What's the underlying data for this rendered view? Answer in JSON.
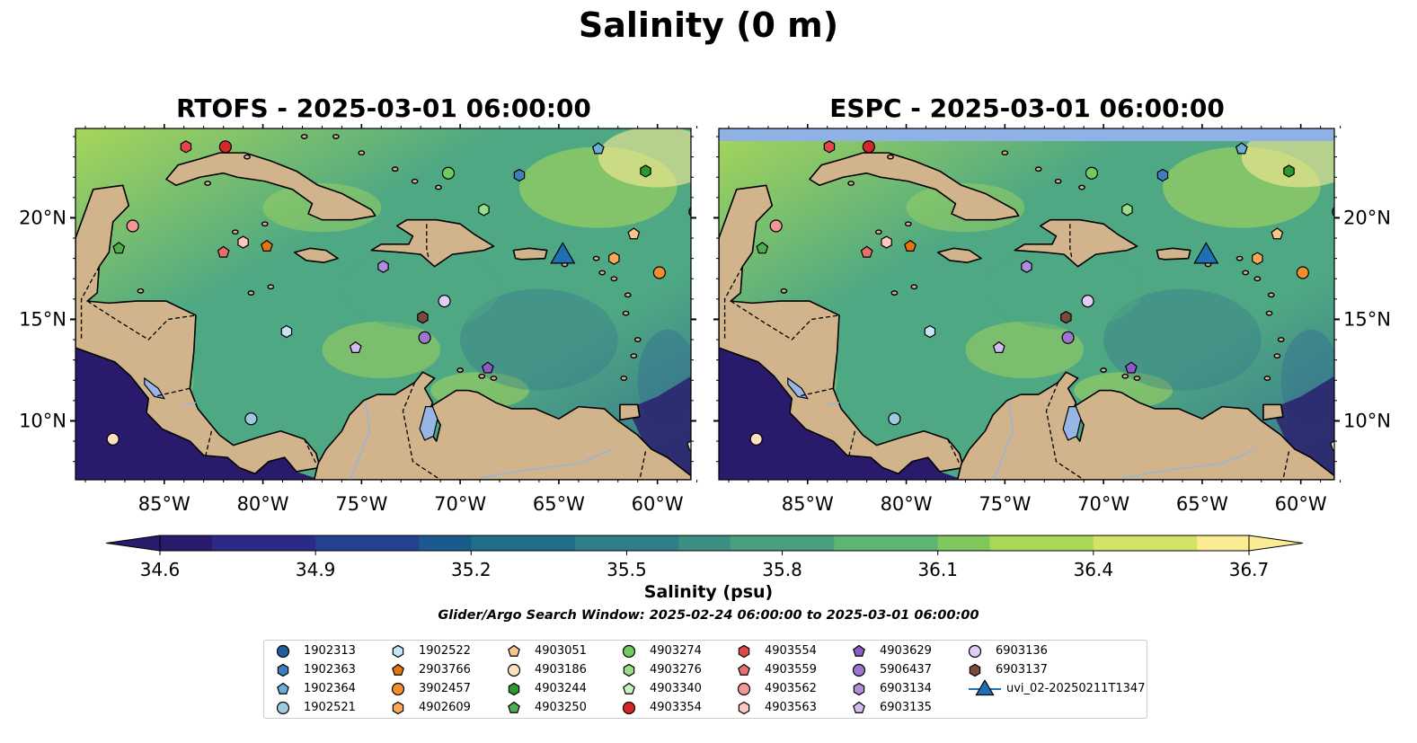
{
  "title": "Salinity (0 m)",
  "panels": [
    {
      "id": "rtofs",
      "title": "RTOFS - 2025-03-01 06:00:00",
      "top_band": false
    },
    {
      "id": "espc",
      "title": "ESPC - 2025-03-01 06:00:00",
      "top_band": true
    }
  ],
  "map": {
    "lon_ticks": [
      "85°W",
      "80°W",
      "75°W",
      "70°W",
      "65°W",
      "60°W"
    ],
    "lat_ticks": [
      "20°N",
      "15°N",
      "10°N"
    ],
    "lon_range": [
      -89.5,
      -58.3
    ],
    "lat_range": [
      7.1,
      24.4
    ],
    "colors": {
      "land": "#d1b48c",
      "deep_pacific": "#2a1a6b",
      "ocean_mid": "#4ea883",
      "ocean_fresh": "#35728f",
      "ocean_salty": "#a7d65a",
      "lakes": "#97b6e6",
      "no_data_band": "#8fb2e6"
    }
  },
  "colorbar": {
    "label": "Salinity (psu)",
    "ticks": [
      "34.6",
      "34.9",
      "35.2",
      "35.5",
      "35.8",
      "36.1",
      "36.4",
      "36.7"
    ],
    "range": [
      34.6,
      36.7
    ],
    "colors": [
      "#2a1a6b",
      "#2b2a86",
      "#24438f",
      "#1b5a8c",
      "#1f6e8a",
      "#2e7f89",
      "#3b9083",
      "#4aa07c",
      "#5db573",
      "#80c75e",
      "#aad758",
      "#d4e26a",
      "#fbeb95"
    ]
  },
  "search_window": "Glider/Argo Search Window: 2025-02-24 06:00:00 to 2025-03-01 06:00:00",
  "chart_data": [
    {
      "type": "scatter",
      "title": "RTOFS - 2025-03-01 06:00:00",
      "variable": "Salinity (0 m)",
      "units": "psu",
      "colorbar_range": [
        34.6,
        36.7
      ],
      "floats": [
        {
          "id": "1902313",
          "lon": -58.1,
          "lat": 20.3
        },
        {
          "id": "1902364",
          "lon": -63.0,
          "lat": 23.4
        },
        {
          "id": "1902363",
          "lon": -67.0,
          "lat": 22.1
        },
        {
          "id": "1902521",
          "lon": -80.6,
          "lat": 10.1
        },
        {
          "id": "1902522",
          "lon": -78.8,
          "lat": 14.4
        },
        {
          "id": "2903766",
          "lon": -79.8,
          "lat": 18.6
        },
        {
          "id": "3902457",
          "lon": -59.9,
          "lat": 17.3
        },
        {
          "id": "4902609",
          "lon": -62.2,
          "lat": 18.0
        },
        {
          "id": "4903051",
          "lon": -61.2,
          "lat": 19.2
        },
        {
          "id": "4903186",
          "lon": -87.6,
          "lat": 9.1
        },
        {
          "id": "4903244",
          "lon": -60.6,
          "lat": 22.3
        },
        {
          "id": "4903250",
          "lon": -87.3,
          "lat": 18.5
        },
        {
          "id": "4903274",
          "lon": -70.6,
          "lat": 22.2
        },
        {
          "id": "4903276",
          "lon": -68.8,
          "lat": 20.4
        },
        {
          "id": "4903340",
          "lon": -58.2,
          "lat": 8.8
        },
        {
          "id": "4903354",
          "lon": -81.9,
          "lat": 23.5
        },
        {
          "id": "4903554",
          "lon": -83.9,
          "lat": 23.5
        },
        {
          "id": "4903559",
          "lon": -82.0,
          "lat": 18.3
        },
        {
          "id": "4903562",
          "lon": -86.6,
          "lat": 19.6
        },
        {
          "id": "4903563",
          "lon": -81.0,
          "lat": 18.8
        },
        {
          "id": "4903629",
          "lon": -68.6,
          "lat": 12.6
        },
        {
          "id": "5906437",
          "lon": -71.8,
          "lat": 14.1
        },
        {
          "id": "6903134",
          "lon": -73.9,
          "lat": 17.6
        },
        {
          "id": "6903135",
          "lon": -75.3,
          "lat": 13.6
        },
        {
          "id": "6903136",
          "lon": -70.8,
          "lat": 15.9
        },
        {
          "id": "6903137",
          "lon": -71.9,
          "lat": 15.1
        }
      ],
      "glider": {
        "id": "uvi_02-20250211T1347",
        "lon": -64.8,
        "lat": 18.1
      }
    },
    {
      "type": "scatter",
      "title": "ESPC - 2025-03-01 06:00:00",
      "variable": "Salinity (0 m)",
      "units": "psu",
      "colorbar_range": [
        34.6,
        36.7
      ],
      "same_markers_as": "RTOFS - 2025-03-01 06:00:00"
    }
  ],
  "legend": {
    "entries": [
      {
        "label": "1902313",
        "marker": "circle",
        "color": "#1f5f9c"
      },
      {
        "label": "1902363",
        "marker": "hexagon",
        "color": "#3d7fbd"
      },
      {
        "label": "1902364",
        "marker": "pentagon",
        "color": "#6aaed6"
      },
      {
        "label": "1902521",
        "marker": "circle",
        "color": "#9ecae1"
      },
      {
        "label": "1902522",
        "marker": "hexagon",
        "color": "#c6e3f7"
      },
      {
        "label": "2903766",
        "marker": "pentagon",
        "color": "#e6750f"
      },
      {
        "label": "3902457",
        "marker": "circle",
        "color": "#f28e2b"
      },
      {
        "label": "4902609",
        "marker": "hexagon",
        "color": "#f9a857"
      },
      {
        "label": "4903051",
        "marker": "pentagon",
        "color": "#fcc588"
      },
      {
        "label": "4903186",
        "marker": "circle",
        "color": "#fde0c2"
      },
      {
        "label": "4903244",
        "marker": "hexagon",
        "color": "#2a9a2a"
      },
      {
        "label": "4903250",
        "marker": "pentagon",
        "color": "#4cae4c"
      },
      {
        "label": "4903274",
        "marker": "circle",
        "color": "#6fcb5f"
      },
      {
        "label": "4903276",
        "marker": "hexagon",
        "color": "#98df8a"
      },
      {
        "label": "4903340",
        "marker": "pentagon",
        "color": "#c7f3c0"
      },
      {
        "label": "4903354",
        "marker": "circle",
        "color": "#d62728"
      },
      {
        "label": "4903554",
        "marker": "hexagon",
        "color": "#e0474a"
      },
      {
        "label": "4903559",
        "marker": "pentagon",
        "color": "#ea6e6e"
      },
      {
        "label": "4903562",
        "marker": "circle",
        "color": "#f29696"
      },
      {
        "label": "4903563",
        "marker": "hexagon",
        "color": "#ffc6c4"
      },
      {
        "label": "4903629",
        "marker": "pentagon",
        "color": "#8a5bc4"
      },
      {
        "label": "5906437",
        "marker": "circle",
        "color": "#9e74d0"
      },
      {
        "label": "6903134",
        "marker": "hexagon",
        "color": "#b08ddc"
      },
      {
        "label": "6903135",
        "marker": "pentagon",
        "color": "#d3bdf0"
      },
      {
        "label": "6903136",
        "marker": "circle",
        "color": "#e2cdf7"
      },
      {
        "label": "6903137",
        "marker": "hexagon",
        "color": "#7b4a3c"
      },
      {
        "label": "uvi_02-20250211T1347",
        "marker": "triangle",
        "color": "#1f6fb4"
      }
    ]
  }
}
